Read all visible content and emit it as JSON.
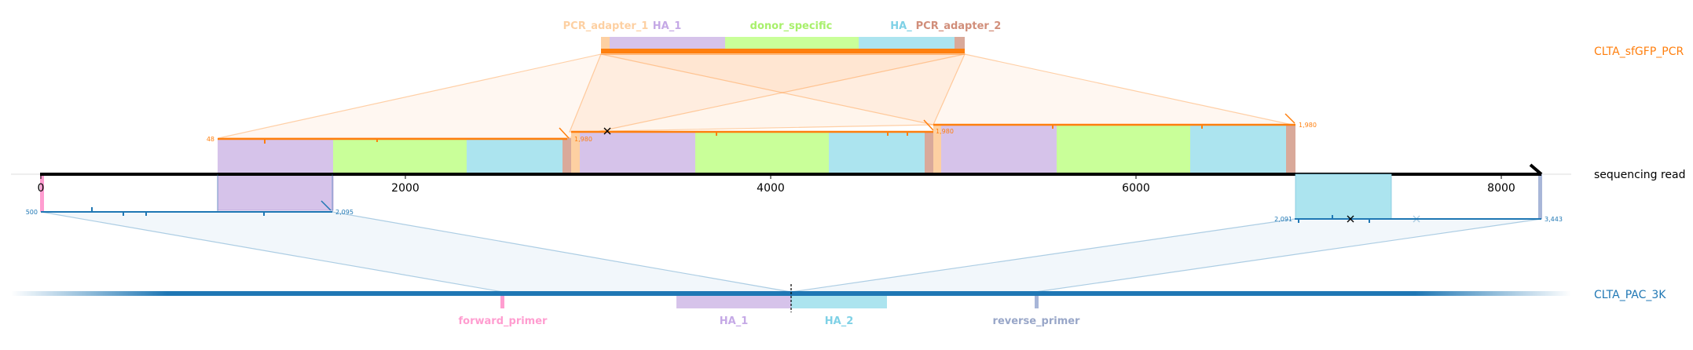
{
  "reads": {
    "sequencing_read": "sequencing read",
    "pcr_product": "CLTA_sfGFP_PCR",
    "plasmid": "CLTA_PAC_3K"
  },
  "top_features": [
    "PCR_adapter_1",
    "HA_1",
    "donor_specific",
    "HA_",
    "PCR_adapter_2"
  ],
  "bottom_features": [
    "forward_primer",
    "HA_1",
    "HA_2",
    "reverse_primer"
  ],
  "axis_ticks": [
    "0",
    "2000",
    "4000",
    "6000",
    "8000"
  ],
  "upper_alignment_labels": [
    "48",
    "1,980",
    "1,980",
    "1,980"
  ],
  "lower_alignment_labels": [
    "500",
    "2,095",
    "2,091",
    "3,443"
  ],
  "colors": {
    "pcr": "#ff7f0e",
    "plasmid": "#1f77b4",
    "pcr_adapter": "#fdd0a2",
    "pcr_adapter_2": "#d9a99a",
    "ha_1": "#d6c3ea",
    "donor_specific": "#c9ff99",
    "ha_2": "#ace4ef",
    "forward_primer": "#ff9dd0",
    "reverse_primer": "#a8b6d8"
  }
}
